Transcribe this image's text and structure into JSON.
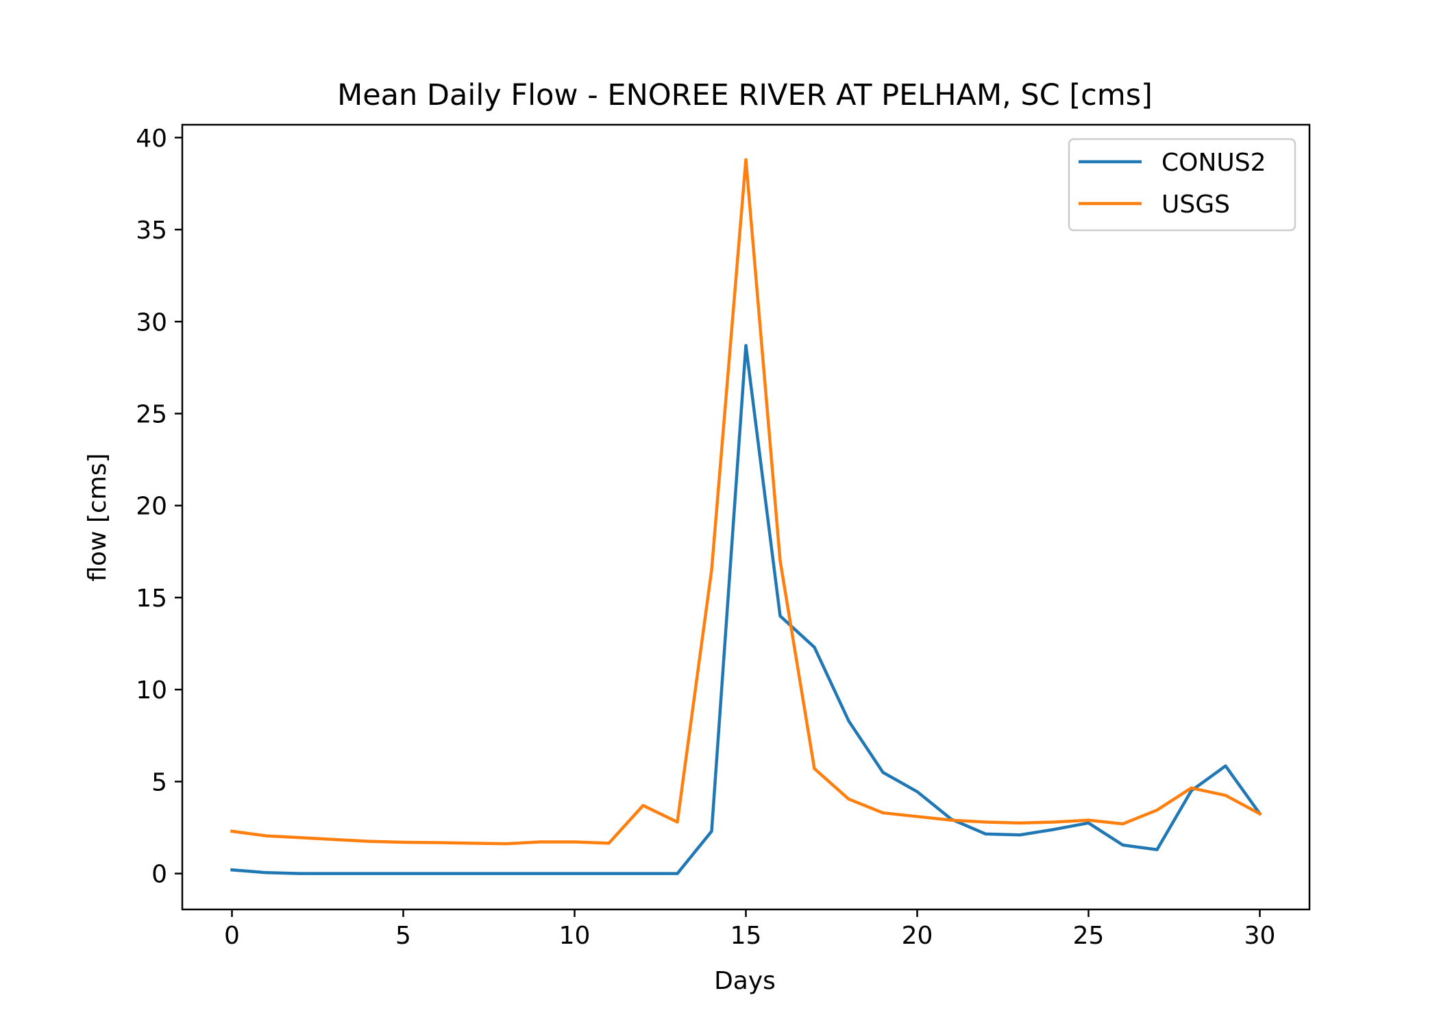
{
  "chart_data": {
    "type": "line",
    "title": "Mean Daily Flow - ENOREE RIVER AT PELHAM, SC [cms]",
    "xlabel": "Days",
    "ylabel": "flow [cms]",
    "xlim": [
      -1.45,
      31.45
    ],
    "ylim": [
      -1.95,
      40.7
    ],
    "xticks": [
      0,
      5,
      10,
      15,
      20,
      25,
      30
    ],
    "yticks": [
      0,
      5,
      10,
      15,
      20,
      25,
      30,
      35,
      40
    ],
    "grid": false,
    "legend_position": "top-right",
    "series": [
      {
        "name": "CONUS2",
        "color": "#1f77b4",
        "x": [
          0,
          1,
          2,
          3,
          4,
          5,
          6,
          7,
          8,
          9,
          10,
          11,
          12,
          13,
          14,
          15,
          16,
          17,
          18,
          19,
          20,
          21,
          22,
          23,
          24,
          25,
          26,
          27,
          28,
          29,
          30
        ],
        "y": [
          0.2,
          0.05,
          0,
          0,
          0,
          0,
          0,
          0,
          0,
          0,
          0,
          0,
          0,
          0,
          2.3,
          28.7,
          14.0,
          12.3,
          8.3,
          5.5,
          4.45,
          2.95,
          2.15,
          2.1,
          2.4,
          2.75,
          1.55,
          1.3,
          4.5,
          5.85,
          3.25
        ]
      },
      {
        "name": "USGS",
        "color": "#ff7f0e",
        "x": [
          0,
          1,
          2,
          3,
          4,
          5,
          6,
          7,
          8,
          9,
          10,
          11,
          12,
          13,
          14,
          15,
          16,
          17,
          18,
          19,
          20,
          21,
          22,
          23,
          24,
          25,
          26,
          27,
          28,
          29,
          30
        ],
        "y": [
          2.3,
          2.05,
          1.95,
          1.85,
          1.75,
          1.7,
          1.68,
          1.65,
          1.62,
          1.72,
          1.72,
          1.65,
          3.7,
          2.8,
          16.5,
          38.8,
          17.0,
          5.7,
          4.05,
          3.3,
          3.1,
          2.9,
          2.8,
          2.75,
          2.8,
          2.9,
          2.7,
          3.45,
          4.65,
          4.25,
          3.25
        ]
      }
    ]
  }
}
